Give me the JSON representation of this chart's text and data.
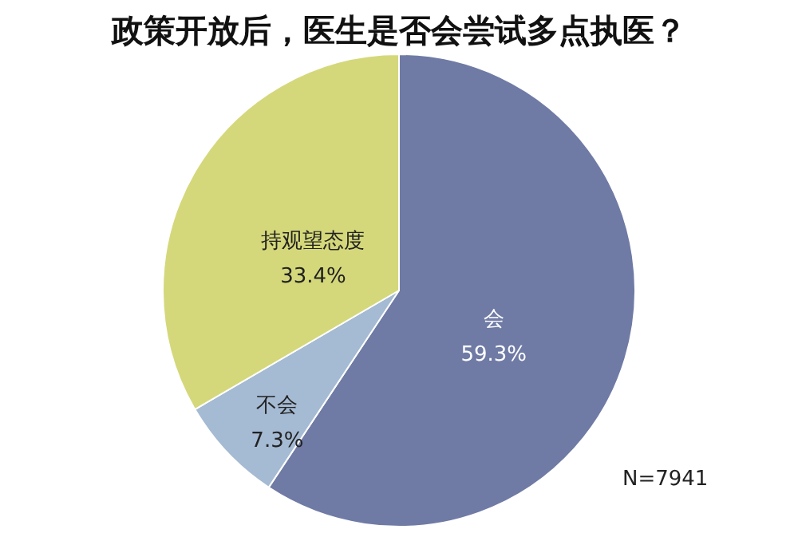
{
  "chart_data": {
    "type": "pie",
    "title": "政策开放后，医生是否会尝试多点执医？",
    "categories": [
      "会",
      "不会",
      "持观望态度"
    ],
    "values": [
      59.3,
      7.3,
      33.4
    ],
    "value_labels": [
      "59.3%",
      "7.3%",
      "33.4%"
    ],
    "colors": [
      "#6f7ba5",
      "#a5bad3",
      "#d4d87a"
    ],
    "annotations": [
      "N=7941"
    ]
  }
}
